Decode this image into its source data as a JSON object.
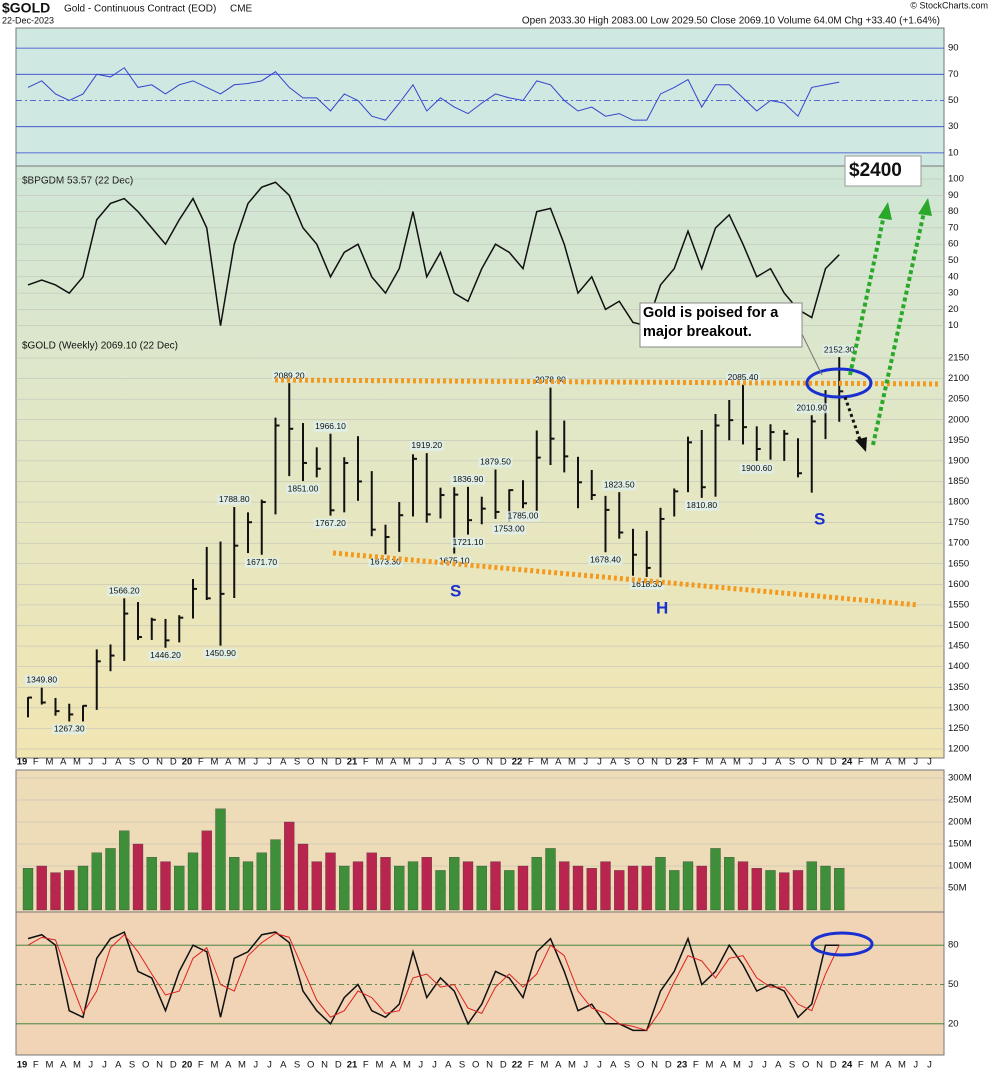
{
  "header": {
    "symbol": "$GOLD",
    "name": "Gold - Continuous Contract (EOD)",
    "exchange": "CME",
    "date": "22-Dec-2023",
    "ohlc": "Open 2033.30 High 2083.00 Low 2029.50 Close 2069.10 Volume 64.0M Chg +33.40 (+1.64%)",
    "credit": "© StockCharts.com"
  },
  "annotations": {
    "target": "$2400",
    "callout": "Gold is poised for a major breakout.",
    "s1": "S",
    "h": "H",
    "s2": "S"
  },
  "x_labels": [
    "19",
    "F",
    "M",
    "A",
    "M",
    "J",
    "J",
    "A",
    "S",
    "O",
    "N",
    "D",
    "20",
    "F",
    "M",
    "A",
    "M",
    "J",
    "J",
    "A",
    "S",
    "O",
    "N",
    "D",
    "21",
    "F",
    "M",
    "A",
    "M",
    "J",
    "J",
    "A",
    "S",
    "O",
    "N",
    "D",
    "22",
    "F",
    "M",
    "A",
    "M",
    "J",
    "J",
    "A",
    "S",
    "O",
    "N",
    "D",
    "23",
    "F",
    "M",
    "A",
    "M",
    "J",
    "J",
    "A",
    "S",
    "O",
    "N",
    "D",
    "24",
    "F",
    "M",
    "A",
    "M",
    "J",
    "J"
  ],
  "chart_data": [
    {
      "type": "line",
      "ylim": [
        0,
        100
      ],
      "yticks": [
        10,
        30,
        50,
        70,
        90
      ],
      "series": [
        {
          "color": "#3344cc",
          "values": [
            60,
            65,
            55,
            50,
            55,
            70,
            68,
            75,
            60,
            62,
            55,
            62,
            65,
            60,
            55,
            62,
            63,
            65,
            72,
            60,
            52,
            52,
            42,
            55,
            50,
            38,
            35,
            48,
            62,
            42,
            52,
            45,
            40,
            48,
            55,
            52,
            50,
            65,
            62,
            50,
            42,
            45,
            38,
            40,
            35,
            35,
            55,
            60,
            66,
            45,
            62,
            62,
            52,
            42,
            50,
            48,
            38,
            60,
            62,
            64
          ]
        }
      ]
    },
    {
      "type": "line",
      "label": "$BPGDM 53.57 (22 Dec)",
      "ylim": [
        0,
        100
      ],
      "yticks": [
        10,
        20,
        30,
        40,
        50,
        60,
        70,
        80,
        90,
        100
      ],
      "series": [
        {
          "color": "#111111",
          "values": [
            35,
            38,
            35,
            30,
            40,
            75,
            85,
            88,
            80,
            70,
            60,
            75,
            88,
            70,
            10,
            60,
            85,
            95,
            98,
            90,
            70,
            60,
            40,
            55,
            60,
            40,
            30,
            45,
            80,
            40,
            55,
            30,
            25,
            45,
            60,
            55,
            45,
            80,
            82,
            60,
            30,
            40,
            20,
            25,
            12,
            10,
            35,
            45,
            68,
            45,
            70,
            78,
            60,
            40,
            45,
            30,
            20,
            15,
            45,
            53.57
          ]
        }
      ]
    },
    {
      "type": "ohlc",
      "label": "$GOLD (Weekly) 2069.10 (22 Dec)",
      "ylim": [
        1200,
        2150
      ],
      "yticks": [
        1200,
        1250,
        1300,
        1350,
        1400,
        1450,
        1500,
        1550,
        1600,
        1650,
        1700,
        1750,
        1800,
        1850,
        1900,
        1950,
        2000,
        2050,
        2100,
        2150
      ],
      "high": [
        1326,
        1349,
        1324,
        1310,
        1306,
        1442,
        1454,
        1566,
        1557,
        1519,
        1516,
        1525,
        1613,
        1691,
        1704,
        1788,
        1775,
        1806,
        2005,
        2089,
        1992,
        1933,
        1966,
        1909,
        1960,
        1875,
        1745,
        1800,
        1916,
        1919,
        1835,
        1836,
        1837,
        1813,
        1879,
        1831,
        1853,
        1974,
        2078,
        1998,
        1910,
        1878,
        1815,
        1824,
        1735,
        1730,
        1786,
        1833,
        1959,
        1975,
        2014,
        2048,
        2085,
        1984,
        1989,
        1975,
        1955,
        2011,
        2072,
        2152
      ],
      "low": [
        1277,
        1308,
        1281,
        1267,
        1267,
        1295,
        1389,
        1414,
        1465,
        1465,
        1446,
        1459,
        1517,
        1562,
        1451,
        1567,
        1676,
        1672,
        1770,
        1863,
        1851,
        1860,
        1767,
        1775,
        1803,
        1717,
        1673,
        1679,
        1765,
        1750,
        1760,
        1675,
        1721,
        1746,
        1759,
        1753,
        1785,
        1779,
        1890,
        1872,
        1785,
        1805,
        1678,
        1711,
        1621,
        1618,
        1617,
        1765,
        1824,
        1810,
        1813,
        1950,
        1940,
        1900,
        1903,
        1900,
        1860,
        1823,
        1953,
        1995
      ],
      "close": [
        1325,
        1313,
        1292,
        1284,
        1305,
        1413,
        1427,
        1529,
        1472,
        1514,
        1464,
        1519,
        1589,
        1566,
        1577,
        1694,
        1751,
        1800,
        1986,
        1978,
        1895,
        1881,
        1780,
        1895,
        1850,
        1733,
        1715,
        1768,
        1905,
        1770,
        1817,
        1818,
        1756,
        1784,
        1776,
        1829,
        1797,
        1908,
        1954,
        1911,
        1848,
        1817,
        1781,
        1726,
        1672,
        1640,
        1759,
        1826,
        1945,
        1836,
        1986,
        1999,
        1982,
        1929,
        1970,
        1966,
        1870,
        1996,
        2057,
        2069
      ],
      "price_labels": [
        "2089.20",
        "1966.10",
        "1851.00",
        "1788.80",
        "1671.70",
        "1566.20",
        "1446.20",
        "1450.90",
        "1349.80",
        "1267.30",
        "1767.20",
        "1673.30",
        "1919.20",
        "1836.90",
        "1879.50",
        "1721.10",
        "1675.10",
        "1753.00",
        "2078.80",
        "1785.00",
        "1678.40",
        "1618.30",
        "2085.40",
        "2010.90",
        "1900.60",
        "1810.80",
        "1823.50",
        "2152.30"
      ]
    },
    {
      "type": "bar",
      "ylim": [
        0,
        300
      ],
      "yticks": [
        {
          "value": 50,
          "label": "50M"
        },
        {
          "value": 100,
          "label": "100M"
        },
        {
          "value": 150,
          "label": "150M"
        },
        {
          "value": 200,
          "label": "200M"
        },
        {
          "value": 250,
          "label": "250M"
        },
        {
          "value": 300,
          "label": "300M"
        }
      ],
      "up_color": "#3f8f3a",
      "down_color": "#b8264f",
      "values": [
        95,
        100,
        85,
        90,
        100,
        130,
        140,
        180,
        150,
        120,
        110,
        100,
        130,
        180,
        230,
        120,
        110,
        130,
        160,
        200,
        150,
        110,
        130,
        100,
        110,
        130,
        120,
        100,
        110,
        120,
        90,
        120,
        110,
        100,
        110,
        90,
        100,
        120,
        140,
        110,
        100,
        95,
        110,
        90,
        100,
        100,
        120,
        90,
        110,
        100,
        140,
        120,
        110,
        95,
        90,
        85,
        90,
        110,
        100,
        95
      ]
    },
    {
      "type": "line",
      "ylim": [
        0,
        100
      ],
      "yticks": [
        20,
        50,
        80
      ],
      "series": [
        {
          "color": "#111111",
          "values": [
            85,
            88,
            80,
            30,
            25,
            70,
            85,
            90,
            60,
            55,
            30,
            60,
            80,
            75,
            25,
            70,
            75,
            88,
            90,
            82,
            45,
            30,
            20,
            40,
            50,
            30,
            25,
            35,
            75,
            40,
            55,
            45,
            20,
            35,
            60,
            55,
            40,
            75,
            85,
            60,
            30,
            35,
            20,
            20,
            15,
            15,
            45,
            60,
            85,
            50,
            60,
            80,
            65,
            45,
            50,
            45,
            25,
            35,
            80,
            80
          ]
        },
        {
          "color": "#dd2222",
          "values": [
            80,
            86,
            84,
            55,
            28,
            45,
            78,
            88,
            75,
            58,
            42,
            45,
            70,
            78,
            50,
            45,
            72,
            82,
            89,
            86,
            62,
            38,
            25,
            30,
            45,
            40,
            28,
            30,
            55,
            58,
            48,
            50,
            32,
            28,
            48,
            58,
            48,
            58,
            80,
            72,
            45,
            32,
            28,
            20,
            18,
            15,
            30,
            52,
            72,
            68,
            55,
            70,
            72,
            55,
            48,
            48,
            35,
            30,
            58,
            80
          ]
        }
      ]
    }
  ]
}
